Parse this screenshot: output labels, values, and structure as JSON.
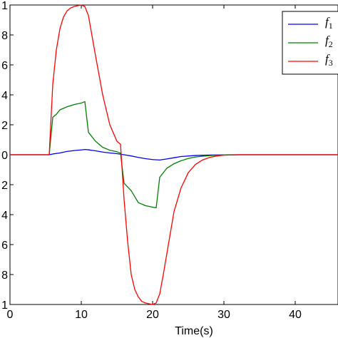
{
  "chart_data": {
    "type": "line",
    "xlabel": "Time(s)",
    "ylabel": "",
    "title": "",
    "xlim": [
      0,
      46
    ],
    "ylim": [
      -1,
      1
    ],
    "x_ticks": [
      "0",
      "10",
      "20",
      "30",
      "40"
    ],
    "y_ticks": [
      "1",
      "8",
      "6",
      "4",
      "2",
      "0",
      "2",
      "4",
      "6",
      "8",
      "1"
    ],
    "grid": false,
    "legend_position": "top-right",
    "series": [
      {
        "name": "f1",
        "legend_base": "f",
        "legend_sub": "1",
        "color": "#0000ff",
        "x": [
          0,
          5.5,
          6,
          7,
          8,
          9,
          10,
          10.5,
          11,
          12,
          13,
          14,
          15,
          16,
          17,
          18,
          19,
          20,
          21,
          22,
          23,
          24,
          26,
          28,
          30,
          32,
          46
        ],
        "y": [
          0,
          0,
          0.005,
          0.012,
          0.022,
          0.028,
          0.032,
          0.035,
          0.033,
          0.026,
          0.018,
          0.012,
          0.007,
          0.0,
          -0.008,
          -0.018,
          -0.026,
          -0.032,
          -0.035,
          -0.028,
          -0.02,
          -0.012,
          -0.005,
          -0.002,
          -0.001,
          0,
          0
        ]
      },
      {
        "name": "f2",
        "legend_base": "f",
        "legend_sub": "2",
        "color": "#008000",
        "x": [
          0,
          5.5,
          6,
          6.5,
          7,
          7.5,
          8,
          9,
          10,
          10.5,
          11,
          12,
          13,
          14,
          15,
          15.5,
          16,
          17,
          18,
          19,
          20,
          20.5,
          21,
          22,
          23,
          24,
          25,
          26,
          27,
          28,
          29,
          30,
          32,
          46
        ],
        "y": [
          0,
          0,
          0.25,
          0.27,
          0.3,
          0.31,
          0.32,
          0.335,
          0.345,
          0.355,
          0.15,
          0.09,
          0.05,
          0.03,
          0.02,
          0.01,
          -0.19,
          -0.24,
          -0.32,
          -0.34,
          -0.35,
          -0.355,
          -0.15,
          -0.09,
          -0.06,
          -0.04,
          -0.025,
          -0.015,
          -0.01,
          -0.006,
          -0.003,
          -0.001,
          0,
          0
        ]
      },
      {
        "name": "f3",
        "legend_base": "f",
        "legend_sub": "3",
        "color": "#ff0000",
        "x": [
          0,
          5.5,
          6,
          6.5,
          7,
          7.5,
          8,
          8.5,
          9,
          9.5,
          10,
          10.5,
          11,
          12,
          13,
          14,
          15,
          15.5,
          16,
          16.5,
          17,
          17.5,
          18,
          18.5,
          19,
          19.5,
          20,
          20.5,
          21,
          21.5,
          22,
          23,
          24,
          25,
          26,
          27,
          28,
          29,
          30,
          32,
          46
        ],
        "y": [
          0,
          0,
          0.47,
          0.7,
          0.84,
          0.92,
          0.96,
          0.98,
          0.99,
          0.995,
          1.0,
          0.99,
          0.93,
          0.66,
          0.4,
          0.2,
          0.09,
          0.07,
          -0.3,
          -0.58,
          -0.8,
          -0.9,
          -0.95,
          -0.98,
          -0.99,
          -0.995,
          -1.0,
          -0.99,
          -0.93,
          -0.8,
          -0.66,
          -0.38,
          -0.22,
          -0.12,
          -0.065,
          -0.035,
          -0.018,
          -0.008,
          -0.003,
          0,
          0
        ]
      }
    ]
  }
}
